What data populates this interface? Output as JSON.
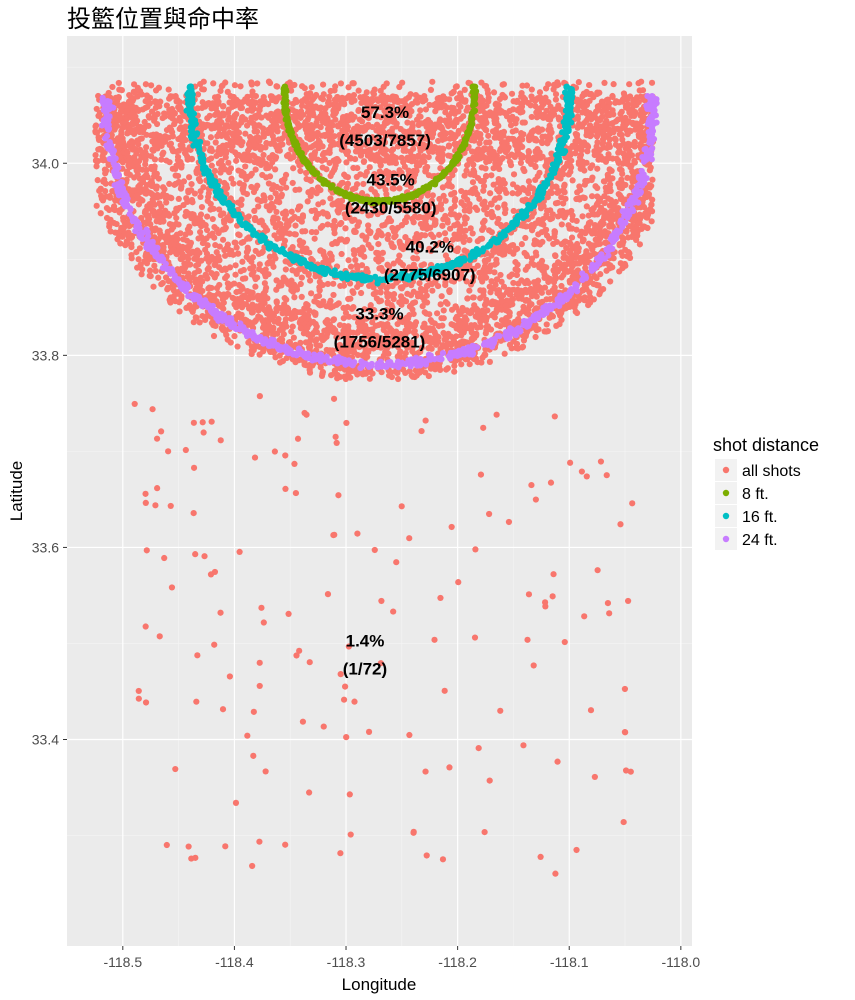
{
  "chart_data": {
    "type": "scatter",
    "title": "投籃位置與命中率",
    "xlabel": "Longitude",
    "ylabel": "Latitude",
    "xlim": [
      -118.55,
      -117.99
    ],
    "ylim": [
      33.185,
      34.1325
    ],
    "x_ticks": [
      -118.5,
      -118.4,
      -118.3,
      -118.2,
      -118.1,
      -118.0
    ],
    "x_tick_labels": [
      "-118.5",
      "-118.4",
      "-118.3",
      "-118.2",
      "-118.1",
      "-118.0"
    ],
    "y_ticks": [
      33.4,
      33.6,
      33.8,
      34.0
    ],
    "y_tick_labels": [
      "33.4",
      "33.6",
      "33.8",
      "34.0"
    ],
    "grid": true,
    "legend": {
      "title": "shot distance",
      "position": "right",
      "entries": [
        {
          "label": "all shots",
          "color": "#F8766D"
        },
        {
          "label": "8 ft.",
          "color": "#7CAE00"
        },
        {
          "label": "16 ft.",
          "color": "#00BFC4"
        },
        {
          "label": "24 ft.",
          "color": "#C77CFF"
        }
      ]
    },
    "center": {
      "x": -118.27,
      "y": 34.07
    },
    "series": [
      {
        "name": "all shots",
        "color": "#F8766D",
        "description": "dense scatter inside 24 ft arc plus sparse points below"
      },
      {
        "name": "8 ft.",
        "color": "#7CAE00",
        "arc": {
          "rx": 0.085,
          "ry": 0.11,
          "y_top": 34.07
        }
      },
      {
        "name": "16 ft.",
        "color": "#00BFC4",
        "arc": {
          "rx": 0.17,
          "ry": 0.19,
          "y_top": 34.07
        }
      },
      {
        "name": "24 ft.",
        "color": "#C77CFF",
        "arc": {
          "rx": 0.245,
          "ry": 0.27,
          "y_top": 34.06
        }
      }
    ],
    "annotations": [
      {
        "pct": "57.3%",
        "count": "(4503/7857)",
        "x": -118.265,
        "y": 34.045
      },
      {
        "pct": "43.5%",
        "count": "(2430/5580)",
        "x": -118.26,
        "y": 33.975
      },
      {
        "pct": "40.2%",
        "count": "(2775/6907)",
        "x": -118.225,
        "y": 33.905
      },
      {
        "pct": "33.3%",
        "count": "(1756/5281)",
        "x": -118.27,
        "y": 33.835
      },
      {
        "pct": "1.4%",
        "count": "(1/72)",
        "x": -118.283,
        "y": 33.495
      }
    ]
  }
}
